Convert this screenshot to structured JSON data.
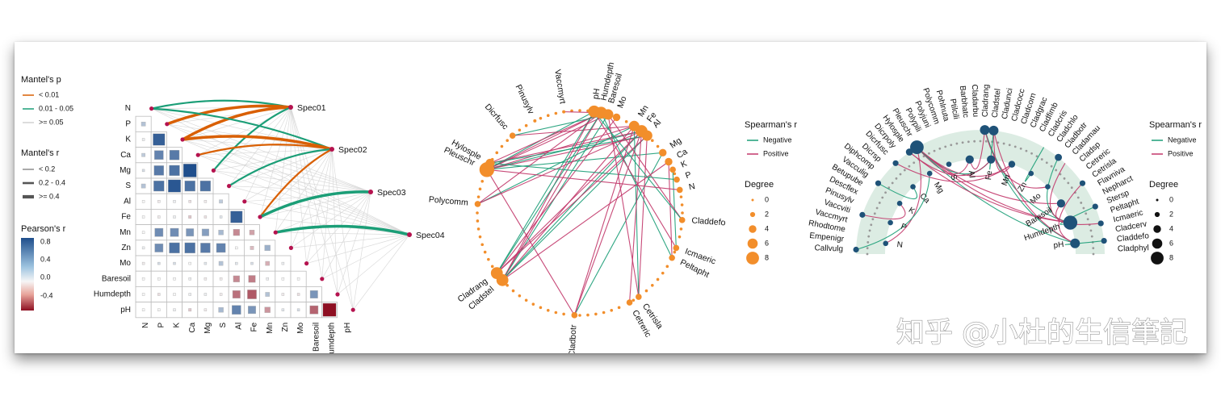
{
  "watermark": "知乎 @小杜的生信筆記",
  "colors": {
    "mantel_p": [
      "#d95f02",
      "#1b9e77",
      "#d0d0d0"
    ],
    "negative": "#1b9e77",
    "positive": "#c2376a",
    "node_orange": "#f28e2b",
    "node_blue": "#1f5278",
    "fan_bg": "#d8eae0",
    "spec_node": "#b5134f"
  },
  "legend_left": {
    "mantel_p_title": "Mantel's p",
    "mantel_p_items": [
      "< 0.01",
      "0.01 - 0.05",
      ">= 0.05"
    ],
    "mantel_r_title": "Mantel's r",
    "mantel_r_items": [
      "< 0.2",
      "0.2 - 0.4",
      ">= 0.4"
    ],
    "pearson_title": "Pearson's r",
    "pearson_ticks": [
      "0.8",
      "0.4",
      "0.0",
      "-0.4"
    ]
  },
  "legend_mid": {
    "spearman_title": "Spearman's r",
    "spearman_items": [
      "Negative",
      "Positive"
    ],
    "degree_title": "Degree",
    "degree_items": [
      "0",
      "2",
      "4",
      "6",
      "8"
    ]
  },
  "legend_right": {
    "spearman_title": "Spearman's r",
    "spearman_items": [
      "Negative",
      "Positive"
    ],
    "degree_title": "Degree",
    "degree_items": [
      "0",
      "2",
      "4",
      "6",
      "8"
    ]
  },
  "chart_data": [
    {
      "type": "heatmap",
      "variables": [
        "N",
        "P",
        "K",
        "Ca",
        "Mg",
        "S",
        "Al",
        "Fe",
        "Mn",
        "Zn",
        "Mo",
        "Baresoil",
        "Humdepth",
        "pH"
      ],
      "specs": [
        "Spec01",
        "Spec02",
        "Spec03",
        "Spec04"
      ],
      "pearson_lower": [
        [],
        [
          0.3
        ],
        [
          0.05,
          0.85
        ],
        [
          0.25,
          0.65,
          0.7
        ],
        [
          0.15,
          0.7,
          0.75,
          0.95
        ],
        [
          0.3,
          0.75,
          0.9,
          0.75,
          0.75
        ],
        [
          0.0,
          -0.05,
          0.05,
          -0.1,
          -0.05,
          0.25
        ],
        [
          0.0,
          -0.05,
          0.05,
          -0.2,
          -0.1,
          0.1,
          0.85
        ],
        [
          0.0,
          0.6,
          0.6,
          0.55,
          0.5,
          0.35,
          -0.45,
          -0.35
        ],
        [
          0.05,
          0.6,
          0.75,
          0.75,
          0.7,
          0.65,
          0.0,
          -0.25,
          0.4
        ],
        [
          -0.05,
          0.15,
          0.15,
          0.0,
          0.1,
          0.3,
          0.1,
          0.15,
          -0.3,
          0.05
        ],
        [
          0.0,
          0.0,
          0.0,
          0.05,
          -0.05,
          -0.05,
          -0.45,
          -0.5,
          0.05,
          0.0,
          0.0
        ],
        [
          0.0,
          -0.1,
          0.0,
          0.05,
          0.05,
          -0.05,
          -0.55,
          -0.65,
          0.3,
          -0.05,
          -0.1,
          0.55
        ],
        [
          0.0,
          0.0,
          0.05,
          -0.2,
          -0.05,
          0.35,
          0.65,
          0.55,
          -0.4,
          0.1,
          0.15,
          -0.6,
          -0.95
        ]
      ],
      "mantel_links": [
        {
          "spec": "Spec01",
          "env": "N",
          "p": "0.01 - 0.05",
          "r": "0.2 - 0.4"
        },
        {
          "spec": "Spec01",
          "env": "P",
          "p": "< 0.01",
          "r": ">= 0.4"
        },
        {
          "spec": "Spec01",
          "env": "K",
          "p": "< 0.01",
          "r": ">= 0.4"
        },
        {
          "spec": "Spec01",
          "env": "Mg",
          "p": "0.01 - 0.05",
          "r": "0.2 - 0.4"
        },
        {
          "spec": "Spec02",
          "env": "N",
          "p": "0.01 - 0.05",
          "r": "0.2 - 0.4"
        },
        {
          "spec": "Spec02",
          "env": "K",
          "p": "< 0.01",
          "r": ">= 0.4"
        },
        {
          "spec": "Spec02",
          "env": "Ca",
          "p": "< 0.01",
          "r": "0.2 - 0.4"
        },
        {
          "spec": "Spec02",
          "env": "S",
          "p": "0.01 - 0.05",
          "r": "0.2 - 0.4"
        },
        {
          "spec": "Spec02",
          "env": "Fe",
          "p": "< 0.01",
          "r": "0.2 - 0.4"
        },
        {
          "spec": "Spec03",
          "env": "Fe",
          "p": "0.01 - 0.05",
          "r": ">= 0.4"
        },
        {
          "spec": "Spec04",
          "env": "Mn",
          "p": "0.01 - 0.05",
          "r": ">= 0.4"
        }
      ]
    },
    {
      "type": "network",
      "layout": "circle",
      "labeled_nodes": [
        {
          "label": "Vaccmyrt",
          "degree": 0
        },
        {
          "label": "pH",
          "degree": 6
        },
        {
          "label": "Humdepth",
          "degree": 6
        },
        {
          "label": "Baresoil",
          "degree": 5
        },
        {
          "label": "Mo",
          "degree": 3
        },
        {
          "label": "Mn",
          "degree": 5
        },
        {
          "label": "Fe",
          "degree": 6
        },
        {
          "label": "Al",
          "degree": 5
        },
        {
          "label": "Mg",
          "degree": 3
        },
        {
          "label": "Ca",
          "degree": 3
        },
        {
          "label": "K",
          "degree": 2
        },
        {
          "label": "P",
          "degree": 2
        },
        {
          "label": "N",
          "degree": 2
        },
        {
          "label": "Claddefo",
          "degree": 2
        },
        {
          "label": "Icmaeric",
          "degree": 2
        },
        {
          "label": "Peltapht",
          "degree": 2
        },
        {
          "label": "Cetrisla",
          "degree": 2
        },
        {
          "label": "Cetreric",
          "degree": 2
        },
        {
          "label": "Cladbotr",
          "degree": 2
        },
        {
          "label": "Cladstel",
          "degree": 6
        },
        {
          "label": "Cladrang",
          "degree": 6
        },
        {
          "label": "Polycomm",
          "degree": 2
        },
        {
          "label": "Pleuschr",
          "degree": 8
        },
        {
          "label": "Hylosple",
          "degree": 4
        },
        {
          "label": "Dicrfusc",
          "degree": 2
        },
        {
          "label": "Pinusylv",
          "degree": 0
        }
      ]
    },
    {
      "type": "network",
      "layout": "semicircle",
      "env_nodes": [
        "N",
        "P",
        "K",
        "Ca",
        "Mg",
        "S",
        "Al",
        "Fe",
        "Mn",
        "Zn",
        "Mo",
        "Baresoil",
        "Humdepth",
        "pH"
      ],
      "species_nodes": [
        "Callvulg",
        "Empenigr",
        "Rhodtome",
        "Vaccmyrt",
        "Vaccviti",
        "Pinusylv",
        "Descflex",
        "Betupube",
        "Vacculig",
        "Diphcomp",
        "Dicrsp",
        "Dicrfusc",
        "Dicrpoly",
        "Hylosple",
        "Pleuschr",
        "Polypili",
        "Polyjuni",
        "Polycomm",
        "Pohlnuta",
        "Ptilcili",
        "Barbhatc",
        "Cladarbu",
        "Cladrang",
        "Cladstel",
        "Cladunci",
        "Cladcocc",
        "Cladcorn",
        "Cladgrac",
        "Cladfimb",
        "Cladcris",
        "Cladchlo",
        "Cladbotr",
        "Cladamau",
        "Cladsp",
        "Cetreric",
        "Cetrisla",
        "Flavniva",
        "Nepharct",
        "Stersp",
        "Peltapht",
        "Icmaeric",
        "Cladcerv",
        "Claddefo",
        "Cladphyl"
      ]
    }
  ]
}
